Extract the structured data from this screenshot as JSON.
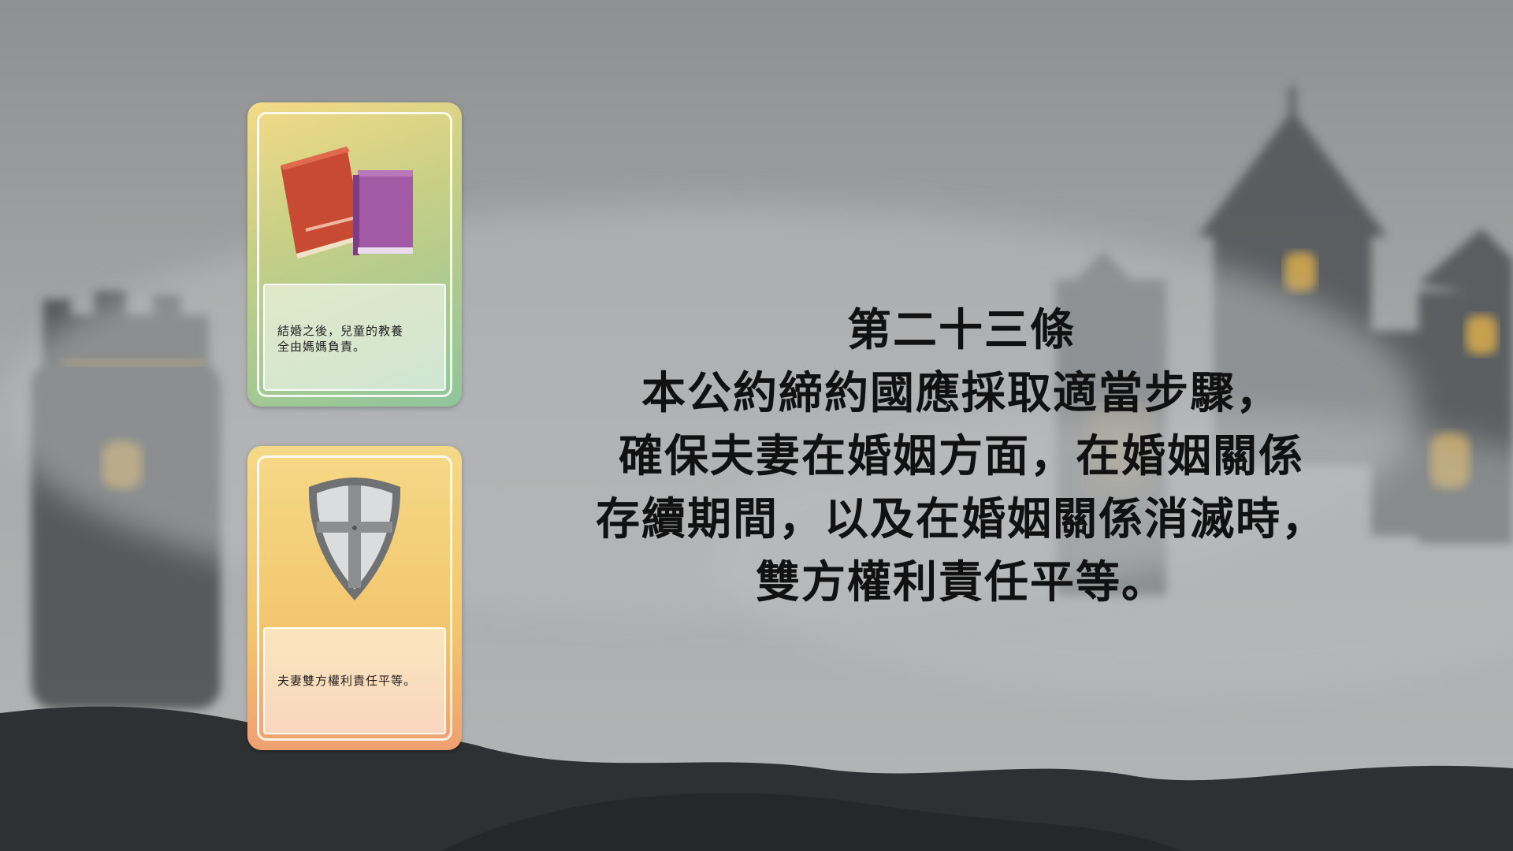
{
  "scene": {
    "background": "foggy-castle-silhouette",
    "sky_color": "#a3a5a6",
    "ground_color": "#2e3034",
    "window_glow_color": "#f0c040"
  },
  "cards": [
    {
      "icon": "books-icon",
      "text": "結婚之後，兒童的教養\n全由媽媽負責。",
      "colors": [
        "#f4da86",
        "#8fc59b"
      ]
    },
    {
      "icon": "shield-icon",
      "text": "夫妻雙方權利責任平等。",
      "colors": [
        "#f5d987",
        "#f0a070"
      ]
    }
  ],
  "article": {
    "title": "第二十三條",
    "lines": [
      "本公約締約國應採取適當步驟，",
      "確保夫妻在婚姻方面，在婚姻關係",
      "存續期間，以及在婚姻關係消滅時，",
      "雙方權利責任平等。"
    ]
  }
}
